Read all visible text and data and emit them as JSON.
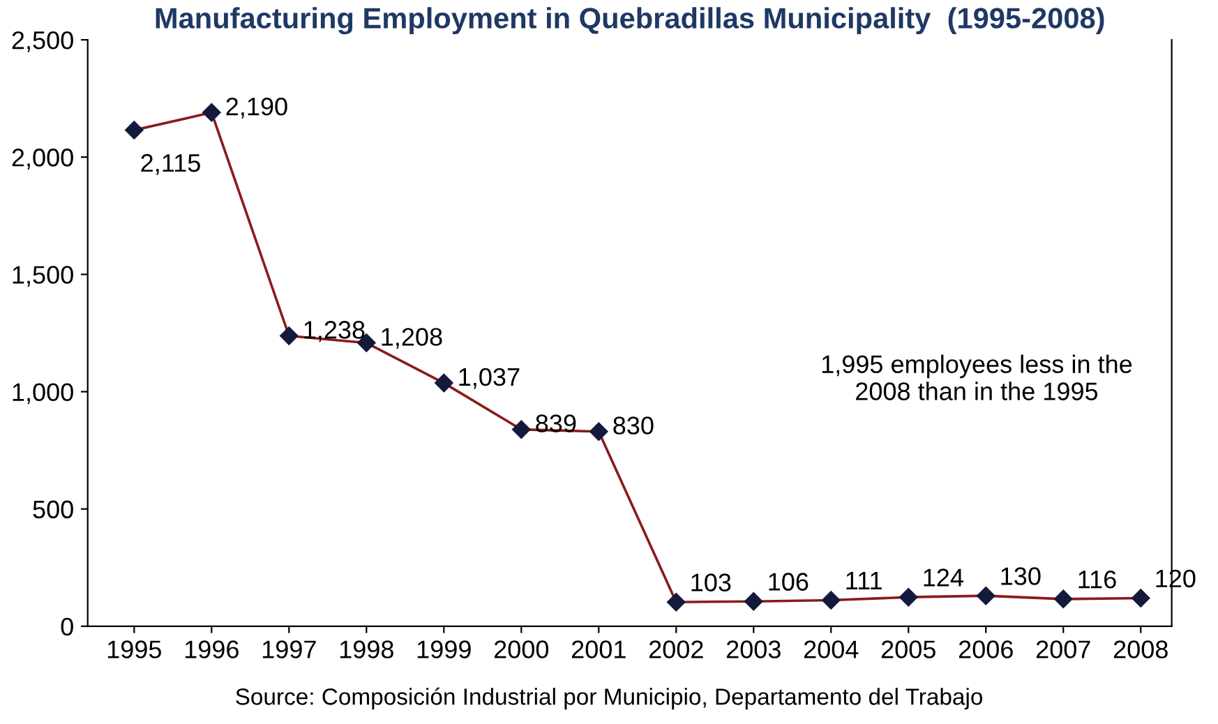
{
  "chart_data": {
    "type": "line",
    "title": "Manufacturing Employment in Quebradillas Municipality  (1995-2008)",
    "categories": [
      "1995",
      "1996",
      "1997",
      "1998",
      "1999",
      "2000",
      "2001",
      "2002",
      "2003",
      "2004",
      "2005",
      "2006",
      "2007",
      "2008"
    ],
    "series": [
      {
        "color": "#8b1a1a",
        "values": [
          2115,
          2190,
          1238,
          1208,
          1037,
          839,
          830,
          103,
          106,
          111,
          124,
          130,
          116,
          120
        ],
        "value_labels": [
          "2,115",
          "2,190",
          "1,238",
          "1,208",
          "1,037",
          "839",
          "830",
          "103",
          "106",
          "111",
          "124",
          "130",
          "116",
          "120"
        ]
      }
    ],
    "ylim": [
      0,
      2500
    ],
    "yticks": [
      {
        "value": 0,
        "label": "0"
      },
      {
        "value": 500,
        "label": "500"
      },
      {
        "value": 1000,
        "label": "1,000"
      },
      {
        "value": 1500,
        "label": "1,500"
      },
      {
        "value": 2000,
        "label": "2,000"
      },
      {
        "value": 2500,
        "label": "2,500"
      }
    ],
    "marker": "diamond",
    "line_style": "solid",
    "grid": false,
    "annotations": [
      "1,995 employees less in the\n2008 than in the 1995",
      "Source: Composición Industrial por Municipio, Departamento del Trabajo"
    ]
  }
}
